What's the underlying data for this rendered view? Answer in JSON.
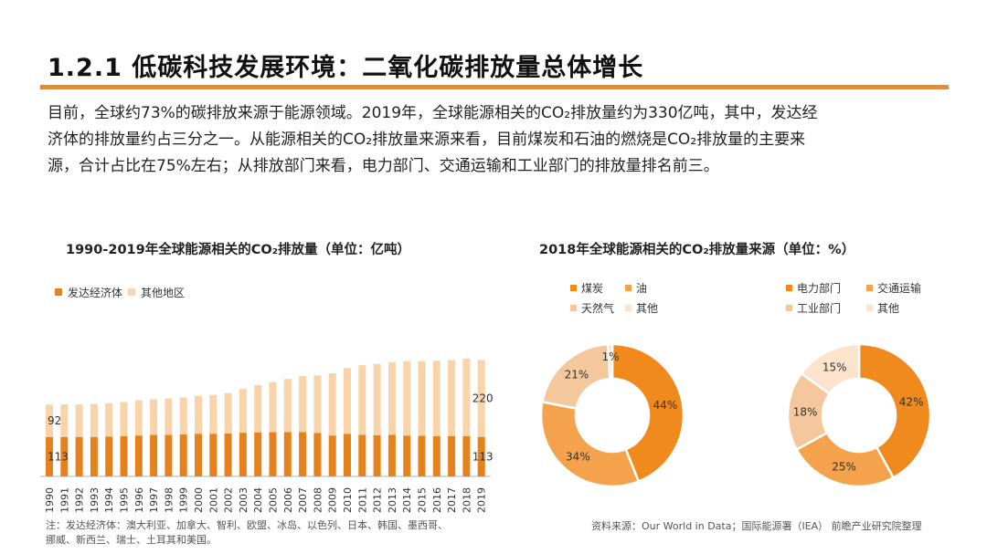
{
  "header": {
    "title": "1.2.1 低碳科技发展环境：二氧化碳排放量总体增长"
  },
  "intro": {
    "line1": "目前，全球约73%的碳排放来源于能源领域。2019年，全球能源相关的CO₂排放量约为330亿吨，其中，发达经",
    "line2": "济体的排放量约占三分之一。从能源相关的CO₂排放量来源来看，目前煤炭和石油的燃烧是CO₂排放量的主要来",
    "line3": "源，合计占比在75%左右；从排放部门来看，电力部门、交通运输和工业部门的排放量排名前三。"
  },
  "colors": {
    "accent": "#f08a1c",
    "dark_orange": "#e5821c",
    "light_orange": "#f9d3aa",
    "tan": "#f4c89c",
    "pale": "#fbe3cc"
  },
  "chart_data": [
    {
      "type": "bar",
      "stacked": true,
      "title": "1990-2019年全球能源相关的CO₂排放量（单位：亿吨）",
      "categories": [
        "1990",
        "1991",
        "1992",
        "1993",
        "1994",
        "1995",
        "1996",
        "1997",
        "1998",
        "1999",
        "2000",
        "2001",
        "2002",
        "2003",
        "2004",
        "2005",
        "2006",
        "2007",
        "2008",
        "2009",
        "2010",
        "2011",
        "2012",
        "2013",
        "2014",
        "2015",
        "2016",
        "2017",
        "2018",
        "2019"
      ],
      "series": [
        {
          "name": "发达经济体",
          "color": "#e5821c",
          "values": [
            113,
            113,
            113,
            113,
            114,
            115,
            117,
            119,
            119,
            120,
            122,
            122,
            123,
            125,
            126,
            127,
            127,
            127,
            124,
            117,
            122,
            119,
            118,
            119,
            117,
            116,
            115,
            115,
            115,
            113
          ]
        },
        {
          "name": "其他地区",
          "color": "#f9d3aa",
          "values": [
            92,
            93,
            93,
            94,
            95,
            98,
            101,
            102,
            104,
            106,
            109,
            111,
            115,
            125,
            135,
            143,
            152,
            160,
            165,
            178,
            188,
            199,
            204,
            208,
            213,
            214,
            216,
            218,
            222,
            220
          ]
        }
      ],
      "data_labels": [
        {
          "category": "1990",
          "series": "其他地区",
          "text": "92"
        },
        {
          "category": "1990",
          "series": "发达经济体",
          "text": "113"
        },
        {
          "category": "2019",
          "series": "其他地区",
          "text": "220"
        },
        {
          "category": "2019",
          "series": "发达经济体",
          "text": "113"
        }
      ],
      "legend": "top-left"
    },
    {
      "type": "pie",
      "donut": true,
      "title": "2018年全球能源相关的CO₂排放量来源（单位：%）",
      "labels": [
        "煤炭",
        "油",
        "天然气",
        "其他"
      ],
      "values": [
        44,
        34,
        21,
        1
      ],
      "colors": [
        "#f08a1c",
        "#f4a24c",
        "#f4c89c",
        "#fbe3cc"
      ],
      "legend": "top"
    },
    {
      "type": "pie",
      "donut": true,
      "labels": [
        "电力部门",
        "交通运输",
        "工业部门",
        "其他"
      ],
      "values": [
        42,
        25,
        18,
        15
      ],
      "colors": [
        "#f08a1c",
        "#f4a24c",
        "#f4c89c",
        "#fbe3cc"
      ],
      "legend": "top"
    }
  ],
  "footer": {
    "note_line1": "注：发达经济体：澳大利亚、加拿大、智利、欧盟、冰岛、以色列、日本、韩国、墨西哥、",
    "note_line2": "挪威、新西兰、瑞士、土耳其和美国。",
    "source": "资料来源：Our World in Data；国际能源署（IEA） 前瞻产业研究院整理"
  }
}
